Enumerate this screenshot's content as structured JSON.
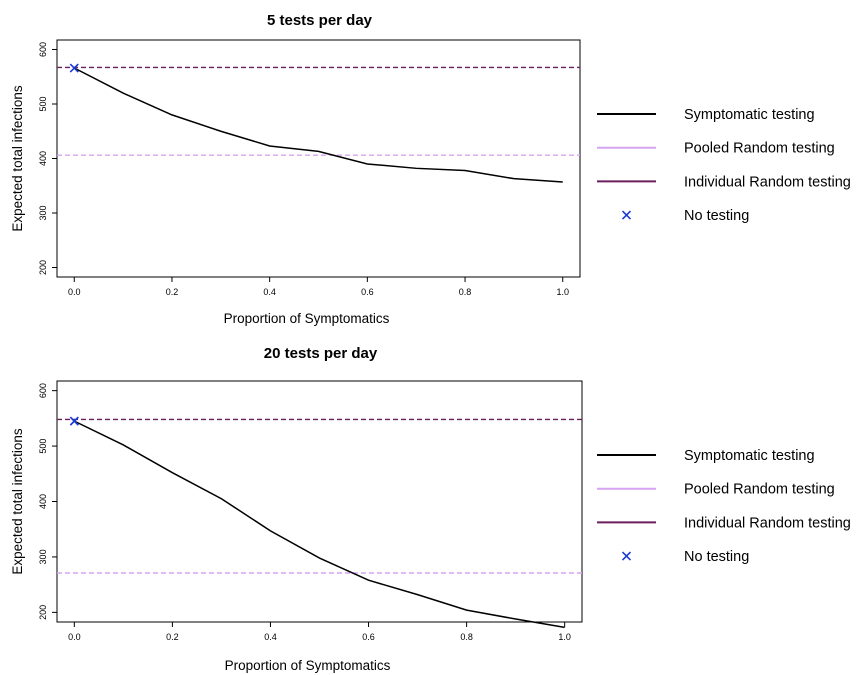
{
  "chart_data": [
    {
      "type": "line",
      "title": "5 tests per day",
      "xlabel": "Proportion of Symptomatics",
      "ylabel": "Expected total infections",
      "xlim": [
        0,
        1
      ],
      "ylim": [
        200,
        600
      ],
      "xticks": [
        "0.0",
        "0.2",
        "0.4",
        "0.6",
        "0.8",
        "1.0"
      ],
      "yticks": [
        "200",
        "300",
        "400",
        "500",
        "600"
      ],
      "series": [
        {
          "name": "Symptomatic testing",
          "color": "#000000",
          "style": "solid",
          "x": [
            0.0,
            0.1,
            0.2,
            0.3,
            0.4,
            0.5,
            0.6,
            0.7,
            0.8,
            0.9,
            1.0
          ],
          "y": [
            566,
            520,
            480,
            450,
            423,
            413,
            390,
            382,
            378,
            363,
            357
          ]
        }
      ],
      "hlines": [
        {
          "name": "Pooled Random testing",
          "y": 406,
          "color": "#d6a4f2",
          "style": "dashed"
        },
        {
          "name": "Individual Random testing",
          "y": 567,
          "color": "#6b1e5e",
          "style": "dashed"
        }
      ],
      "markers": [
        {
          "name": "No testing",
          "x": 0.0,
          "y": 566,
          "color": "#1a3ad6",
          "shape": "x"
        }
      ],
      "legend": {
        "position": "right",
        "items": [
          "Symptomatic testing",
          "Pooled Random testing",
          "Individual Random testing",
          "No testing"
        ]
      }
    },
    {
      "type": "line",
      "title": "20 tests per day",
      "xlabel": "Proportion of Symptomatics",
      "ylabel": "Expected total infections",
      "xlim": [
        0,
        1
      ],
      "ylim": [
        200,
        600
      ],
      "xticks": [
        "0.0",
        "0.2",
        "0.4",
        "0.6",
        "0.8",
        "1.0"
      ],
      "yticks": [
        "200",
        "300",
        "400",
        "500",
        "600"
      ],
      "series": [
        {
          "name": "Symptomatic testing",
          "color": "#000000",
          "style": "solid",
          "x": [
            0.0,
            0.1,
            0.2,
            0.3,
            0.4,
            0.5,
            0.6,
            0.7,
            0.8,
            0.9,
            1.0
          ],
          "y": [
            545,
            502,
            452,
            405,
            347,
            298,
            258,
            232,
            204,
            188,
            173
          ]
        }
      ],
      "hlines": [
        {
          "name": "Pooled Random testing",
          "y": 271,
          "color": "#d6a4f2",
          "style": "dashed"
        },
        {
          "name": "Individual Random testing",
          "y": 548,
          "color": "#6b1e5e",
          "style": "dashed"
        }
      ],
      "markers": [
        {
          "name": "No testing",
          "x": 0.0,
          "y": 545,
          "color": "#1a3ad6",
          "shape": "x"
        }
      ],
      "legend": {
        "position": "right",
        "items": [
          "Symptomatic testing",
          "Pooled Random testing",
          "Individual Random testing",
          "No testing"
        ]
      }
    }
  ]
}
